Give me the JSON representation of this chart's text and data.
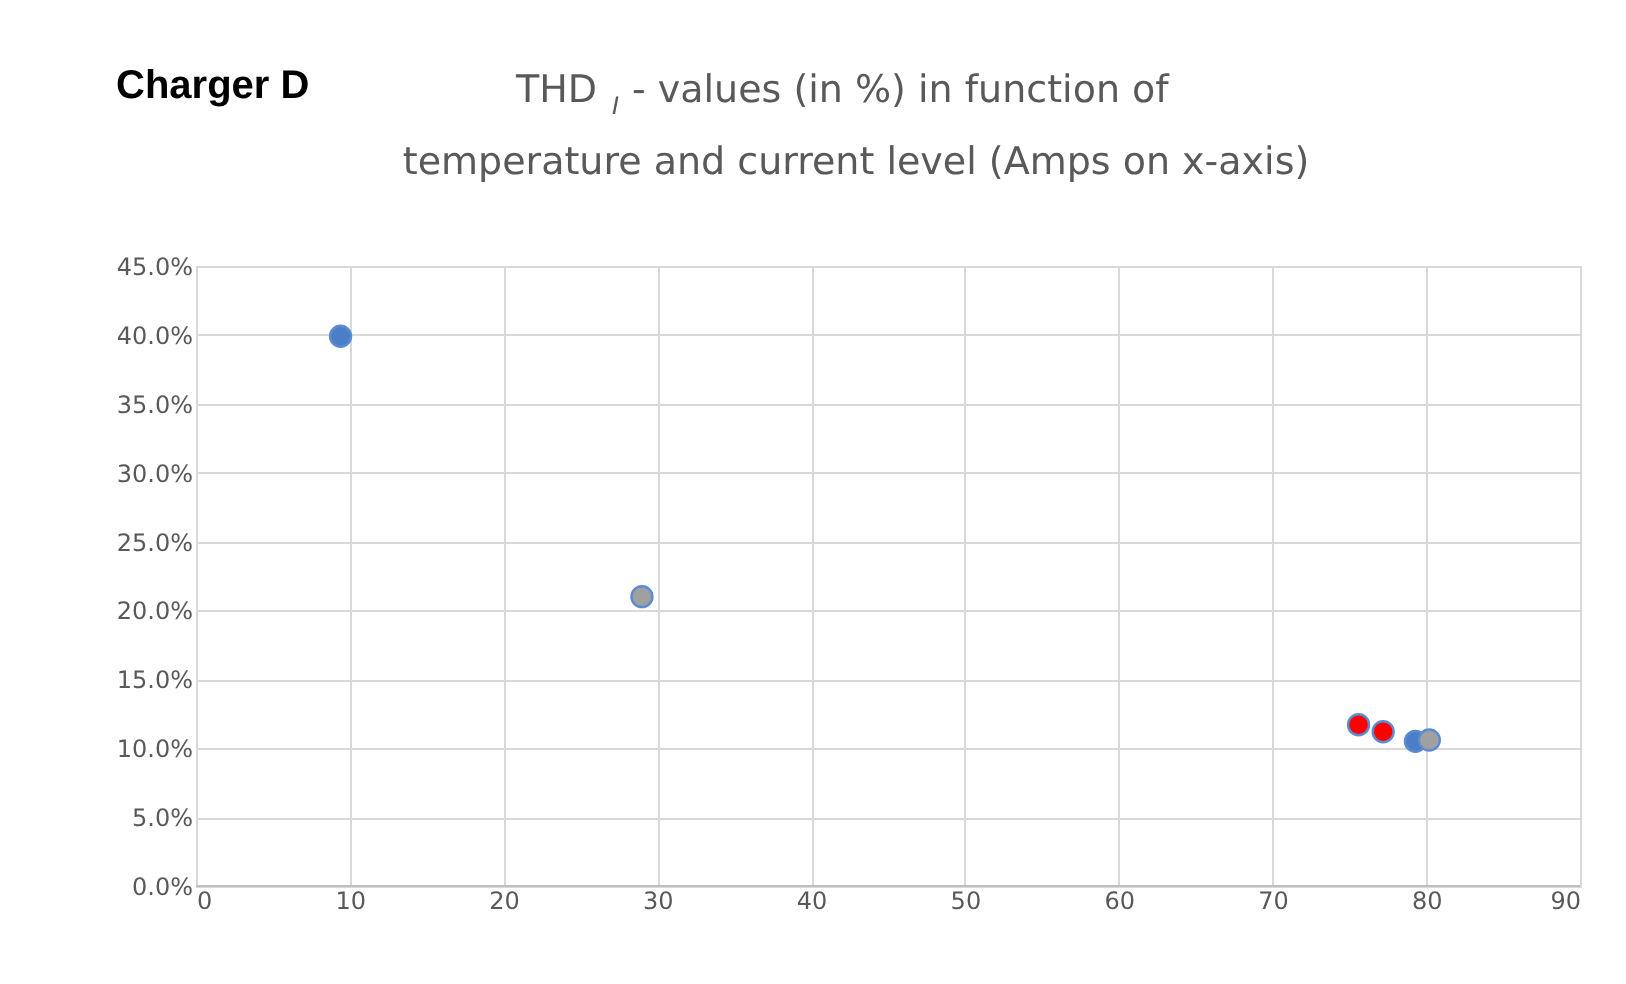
{
  "chart_data": {
    "type": "scatter",
    "title": "Charger D",
    "subtitle": "THD$_{I}$ - values (in %) in function of temperature and current level (Amps on x-axis)",
    "series": [
      {
        "x": [
          9.4,
          29.0,
          75.6,
          77.2,
          79.3,
          80.2
        ],
        "values": [
          39.9,
          21.0,
          11.7,
          11.2,
          10.5,
          10.6
        ],
        "colors": [
          "#4a7fc8",
          "#a0a0a0",
          "#ff0000",
          "#ff0000",
          "#4a7fc8",
          "#a0a0a0"
        ]
      }
    ],
    "xlim": [
      0,
      90
    ],
    "xticks": [
      0,
      10,
      20,
      30,
      40,
      50,
      60,
      70,
      80,
      90
    ],
    "ylim": [
      0,
      45
    ],
    "yticks": [
      {
        "value": 0,
        "label": "0.0%"
      },
      {
        "value": 5,
        "label": "5.0%"
      },
      {
        "value": 10,
        "label": "10.0%"
      },
      {
        "value": 15,
        "label": "15.0%"
      },
      {
        "value": 20,
        "label": "20.0%"
      },
      {
        "value": 25,
        "label": "25.0%"
      },
      {
        "value": 30,
        "label": "30.0%"
      },
      {
        "value": 35,
        "label": "35.0%"
      },
      {
        "value": 40,
        "label": "40.0%"
      },
      {
        "value": 45,
        "label": "45.0%"
      }
    ],
    "grid": true,
    "marker": "circle",
    "legend": false
  }
}
